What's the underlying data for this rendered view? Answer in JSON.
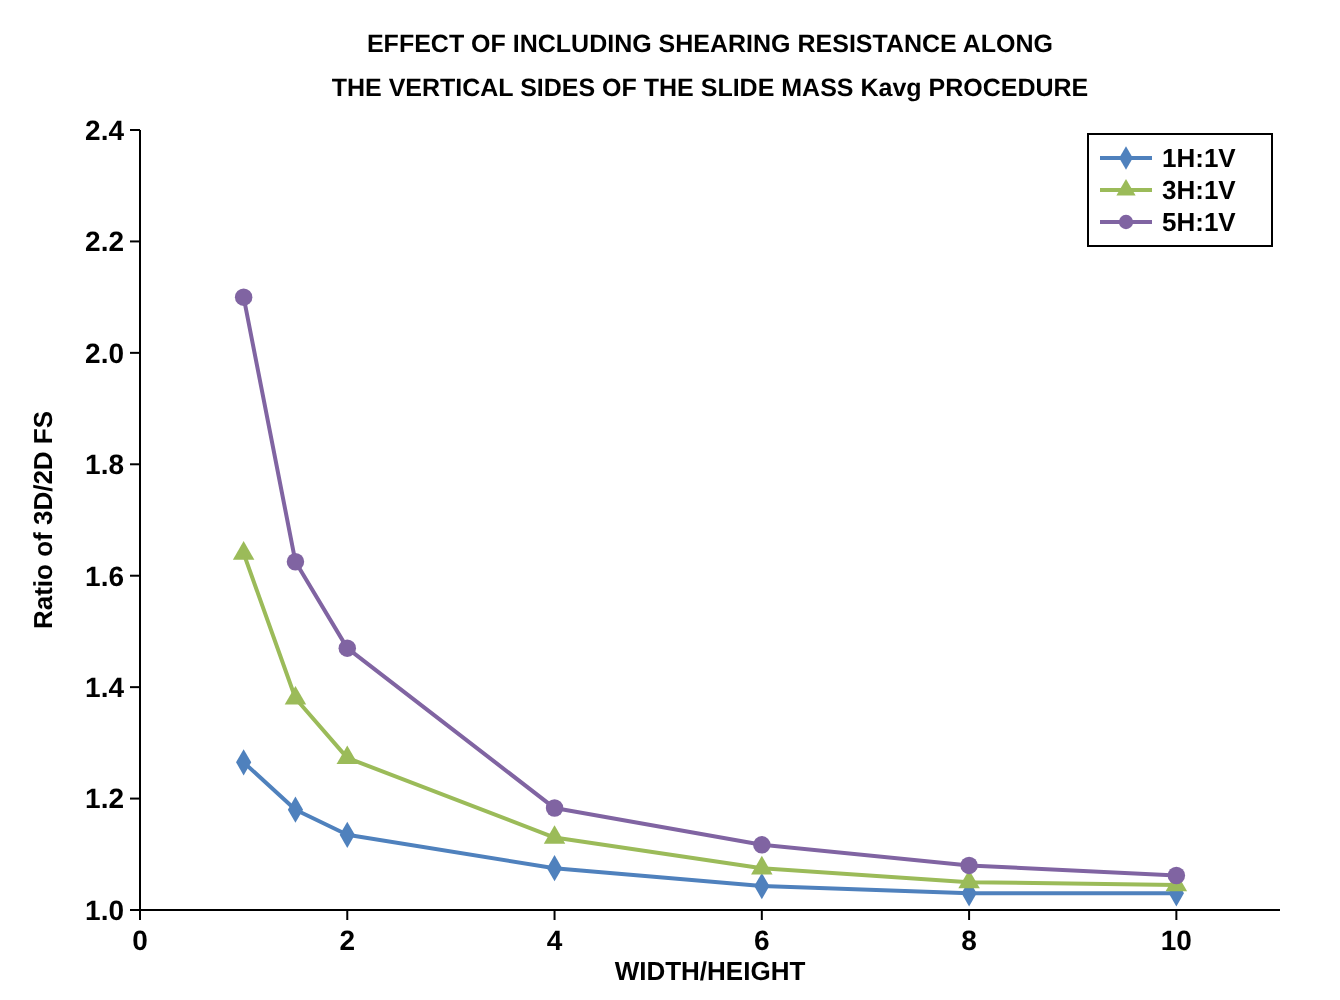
{
  "chart_data": {
    "type": "line",
    "title": "EFFECT OF INCLUDING SHEARING RESISTANCE ALONG\nTHE VERTICAL SIDES OF THE SLIDE MASS  Kavg PROCEDURE",
    "xlabel": "WIDTH/HEIGHT",
    "ylabel": "Ratio of 3D/2D FS",
    "x": [
      1,
      1.5,
      2,
      4,
      6,
      8,
      10
    ],
    "series": [
      {
        "name": "1H:1V",
        "color": "#4f81bd",
        "marker": "diamond",
        "values": [
          1.265,
          1.18,
          1.135,
          1.075,
          1.043,
          1.03,
          1.03
        ]
      },
      {
        "name": "3H:1V",
        "color": "#9bbb59",
        "marker": "triangle",
        "values": [
          1.64,
          1.38,
          1.273,
          1.13,
          1.075,
          1.05,
          1.045
        ]
      },
      {
        "name": "5H:1V",
        "color": "#8064a2",
        "marker": "circle",
        "values": [
          2.1,
          1.625,
          1.47,
          1.183,
          1.117,
          1.08,
          1.062
        ]
      }
    ],
    "xlim": [
      0,
      11
    ],
    "xticks": [
      0,
      2,
      4,
      6,
      8,
      10
    ],
    "ylim": [
      1,
      2.4
    ],
    "yticks": [
      {
        "value": 1,
        "label": "1.0"
      },
      {
        "value": 1.2,
        "label": "1.2"
      },
      {
        "value": 1.4,
        "label": "1.4"
      },
      {
        "value": 1.6,
        "label": "1.6"
      },
      {
        "value": 1.8,
        "label": "1.8"
      },
      {
        "value": 2,
        "label": "2.0"
      },
      {
        "value": 2.2,
        "label": "2.2"
      },
      {
        "value": 2.4,
        "label": "2.4"
      }
    ],
    "grid": false,
    "legend": "top right",
    "line_style": "solid"
  }
}
